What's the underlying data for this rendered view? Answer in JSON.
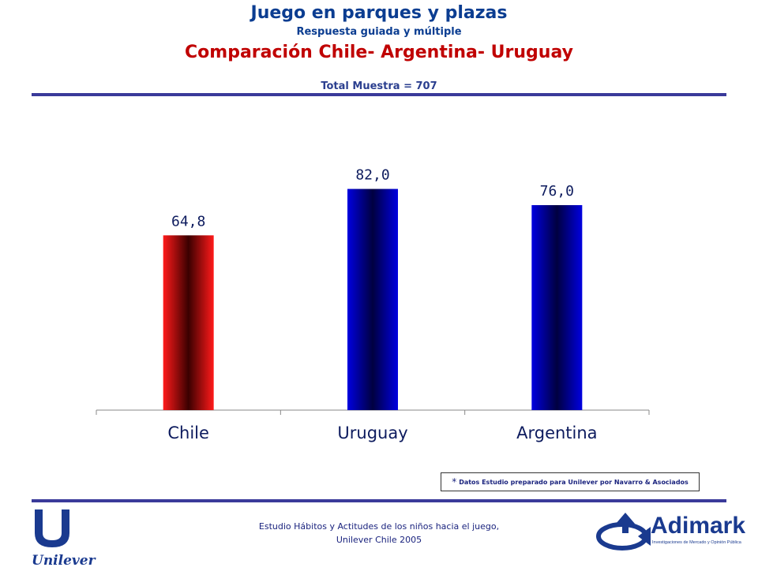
{
  "header": {
    "title": "Juego en parques y plazas",
    "subtitle": "Respuesta guiada y múltiple",
    "comparison": "Comparación Chile- Argentina- Uruguay",
    "sample": "Total Muestra = 707"
  },
  "note": {
    "star": "*",
    "text": "Datos Estudio preparado para Unilever por Navarro & Asociados"
  },
  "footer": {
    "line1": "Estudio Hábitos y Actitudes de los  niños hacia el juego,",
    "line2": "Unilever Chile 2005",
    "unilever_logo_text": "Unilever",
    "adimark_logo_text": "Adimark",
    "adimark_tagline": "Investigaciones de Mercado y Opinión Pública"
  },
  "colors": {
    "title": "#0b3d91",
    "accent": "#c00000",
    "chile_bar": "#e00000",
    "blue_bar": "#0000c8"
  },
  "chart_data": {
    "type": "bar",
    "categories": [
      "Chile",
      "Uruguay",
      "Argentina"
    ],
    "values": [
      64.8,
      82.0,
      76.0
    ],
    "labels": [
      "64,8",
      "82,0",
      "76,0"
    ],
    "bar_colors": [
      "red",
      "blue",
      "blue"
    ],
    "title": "",
    "xlabel": "",
    "ylabel": "",
    "ylim": [
      0,
      100
    ],
    "grid": false,
    "legend": "none"
  }
}
